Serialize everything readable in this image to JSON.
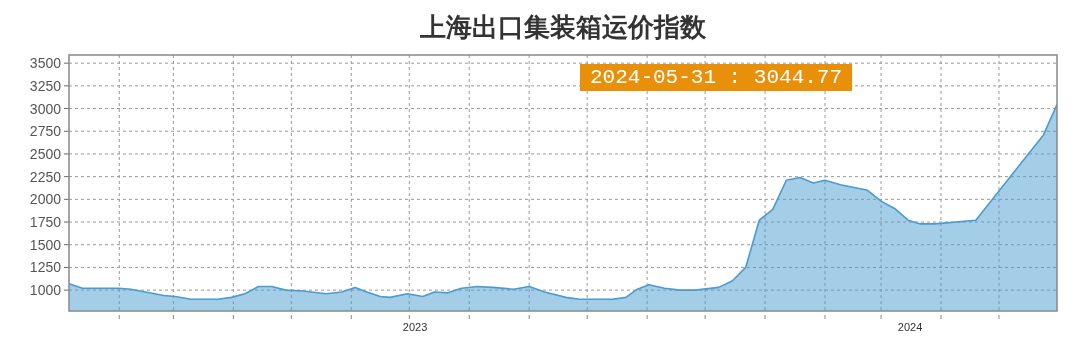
{
  "chart_data": {
    "type": "area",
    "title": "上海出口集装箱运价指数",
    "x": [
      "2023-01-06",
      "2023-01-13",
      "2023-02-01",
      "2023-02-07",
      "2023-02-24",
      "2023-03-02",
      "2023-03-10",
      "2023-03-24",
      "2023-03-31",
      "2023-04-07",
      "2023-04-14",
      "2023-04-21",
      "2023-04-28",
      "2023-05-07",
      "2023-05-19",
      "2023-05-27",
      "2023-06-03",
      "2023-06-09",
      "2023-06-16",
      "2023-06-21",
      "2023-06-30",
      "2023-07-08",
      "2023-07-14",
      "2023-07-21",
      "2023-07-28",
      "2023-08-05",
      "2023-08-13",
      "2023-08-24",
      "2023-09-01",
      "2023-09-09",
      "2023-09-20",
      "2023-09-27",
      "2023-10-14",
      "2023-10-21",
      "2023-10-27",
      "2023-11-02",
      "2023-11-10",
      "2023-11-18",
      "2023-11-26",
      "2023-12-08",
      "2023-12-15",
      "2023-12-22",
      "2023-12-29",
      "2024-01-05",
      "2024-01-12",
      "2024-01-19",
      "2024-01-26",
      "2024-02-01",
      "2024-02-09",
      "2024-02-23",
      "2024-03-01",
      "2024-03-08",
      "2024-03-15",
      "2024-03-21",
      "2024-03-29",
      "2024-04-19",
      "2024-05-24",
      "2024-05-31"
    ],
    "series": [
      {
        "color": "#4a9bd0",
        "values": [
          1070,
          1020,
          1020,
          1010,
          940,
          930,
          900,
          900,
          920,
          960,
          1040,
          1040,
          1000,
          990,
          960,
          980,
          1030,
          980,
          930,
          920,
          960,
          930,
          980,
          970,
          1020,
          1040,
          1030,
          1010,
          1040,
          980,
          920,
          900,
          900,
          920,
          1010,
          1060,
          1020,
          1000,
          1000,
          1030,
          1100,
          1250,
          1770,
          1890,
          2210,
          2240,
          2180,
          2210,
          2160,
          2100,
          1980,
          1900,
          1770,
          1730,
          1730,
          1770,
          2710,
          3044.77
        ]
      }
    ],
    "xlim": [
      "2023-01-06",
      "2024-05-31"
    ],
    "xticks": [
      {
        "value": "2023-02-01",
        "label": null
      },
      {
        "value": "2023-03-01",
        "label": null
      },
      {
        "value": "2023-04-01",
        "label": null
      },
      {
        "value": "2023-05-01",
        "label": null
      },
      {
        "value": "2023-06-01",
        "label": null
      },
      {
        "value": "2023-07-01",
        "label": null
      },
      {
        "value": "2023-07-04",
        "label": "2023"
      },
      {
        "value": "2023-08-01",
        "label": null
      },
      {
        "value": "2023-09-01",
        "label": null
      },
      {
        "value": "2023-10-01",
        "label": null
      },
      {
        "value": "2023-11-01",
        "label": null
      },
      {
        "value": "2023-12-01",
        "label": null
      },
      {
        "value": "2024-01-01",
        "label": null
      },
      {
        "value": "2024-02-01",
        "label": null
      },
      {
        "value": "2024-03-01",
        "label": null
      },
      {
        "value": "2024-03-16",
        "label": "2024"
      },
      {
        "value": "2024-04-01",
        "label": null
      },
      {
        "value": "2024-05-01",
        "label": null
      }
    ],
    "ylim": [
      770,
      3590
    ],
    "yticks": [
      1000,
      1250,
      1500,
      1750,
      2000,
      2250,
      2500,
      2750,
      3000,
      3250,
      3500
    ],
    "grid": true,
    "marker": "none",
    "line_style": "solid",
    "annotations": [
      "2024-05-31 : 3044.77"
    ]
  }
}
